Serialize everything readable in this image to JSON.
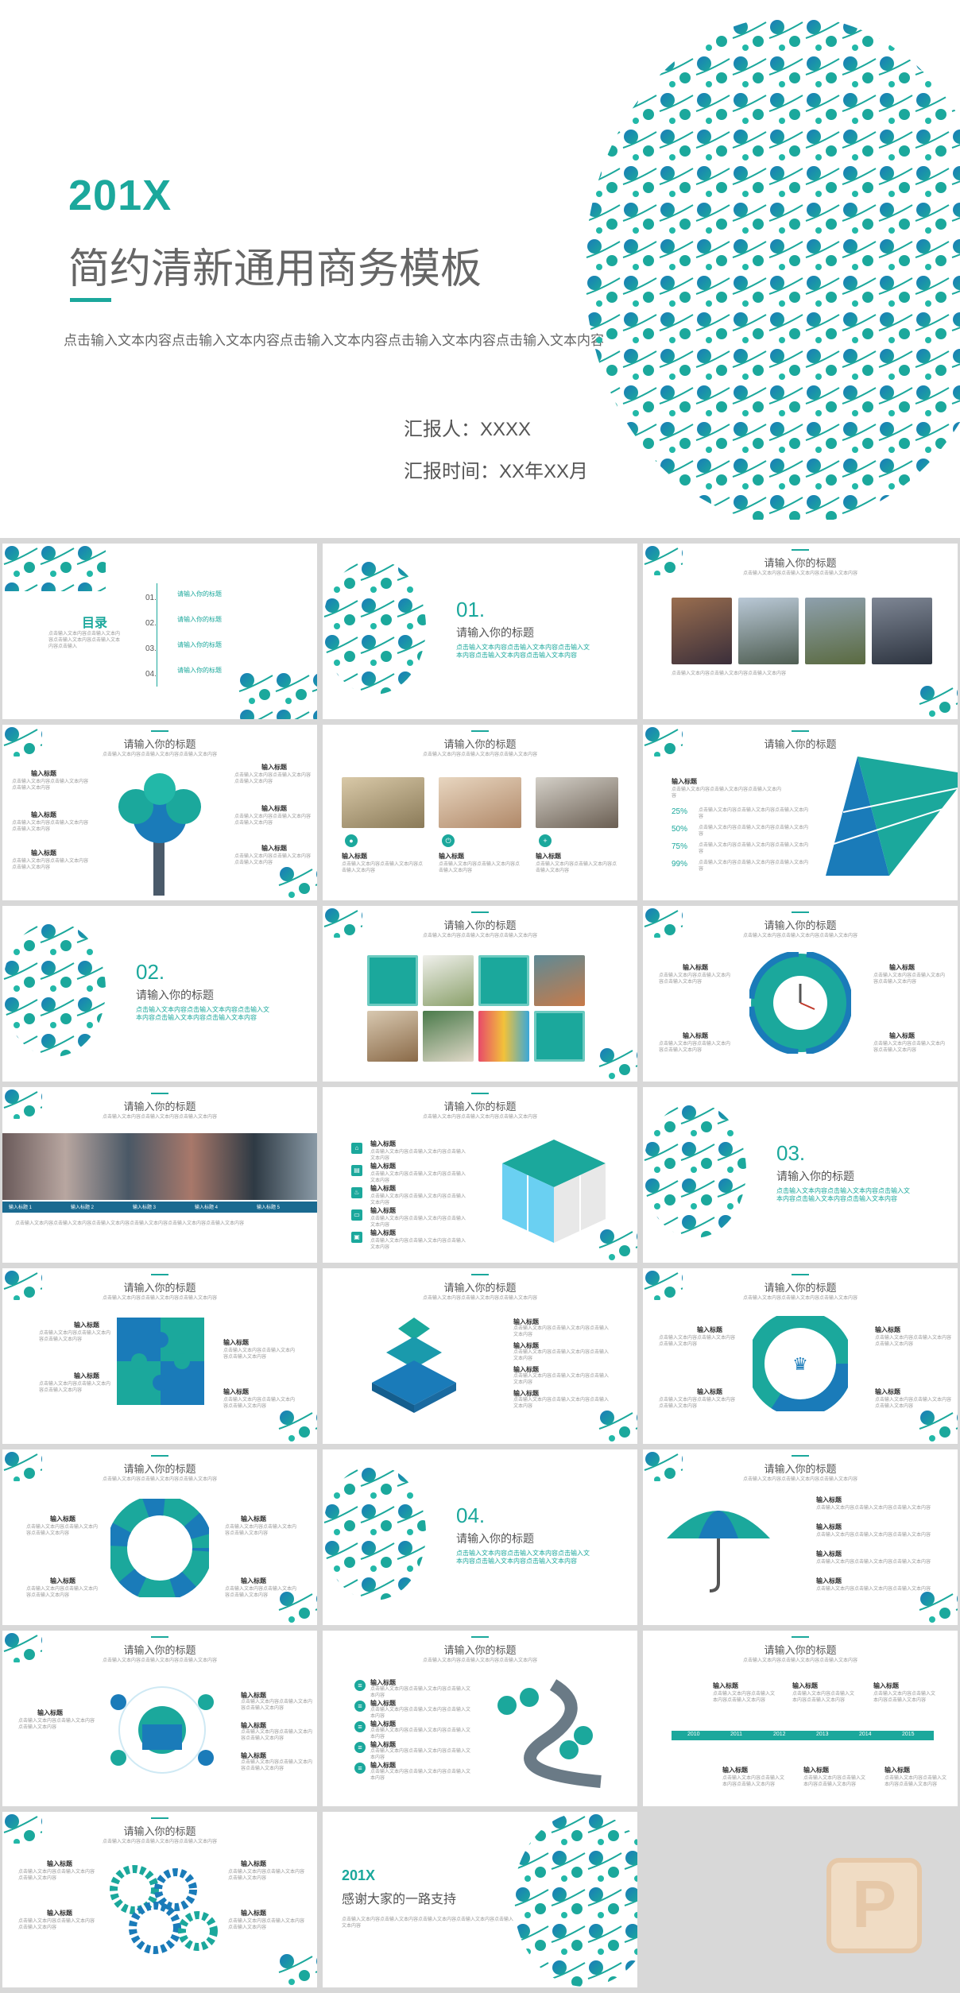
{
  "hero": {
    "year": "201X",
    "title": "简约清新通用商务模板",
    "subtitle": "点击输入文本内容点击输入文本内容点击输入文本内容点击输入文本内容点击输入文本内容",
    "reporter": "汇报人：XXXX",
    "report_time": "汇报时间：XX年XX月"
  },
  "toc": {
    "heading": "目录",
    "desc": "点击输入文本内容点击输入文本内容点击输入文本内容点击输入文本内容点击输入",
    "items": [
      {
        "num": "01.",
        "label": "请输入你的标题"
      },
      {
        "num": "02.",
        "label": "请输入你的标题"
      },
      {
        "num": "03.",
        "label": "请输入你的标题"
      },
      {
        "num": "04.",
        "label": "请输入你的标题"
      }
    ]
  },
  "sections": [
    {
      "num": "01.",
      "title": "请输入你的标题",
      "text": "点击输入文本内容点击输入文本内容点击输入文本内容点击输入文本内容点击输入文本内容"
    },
    {
      "num": "02.",
      "title": "请输入你的标题",
      "text": "点击输入文本内容点击输入文本内容点击输入文本内容点击输入文本内容点击输入文本内容"
    },
    {
      "num": "03.",
      "title": "请输入你的标题",
      "text": "点击输入文本内容点击输入文本内容点击输入文本内容点击输入文本内容点击输入文本内容"
    },
    {
      "num": "04.",
      "title": "请输入你的标题",
      "text": "点击输入文本内容点击输入文本内容点击输入文本内容点击输入文本内容点击输入文本内容"
    }
  ],
  "common": {
    "slide_title": "请输入你的标题",
    "slide_sub": "点击输入文本内容点击输入文本内容点击输入文本内容",
    "item_label": "输入标题",
    "item_text": "点击输入文本内容点击输入文本内容点击输入文本内容"
  },
  "percent_slide": {
    "values": [
      "25%",
      "50%",
      "75%",
      "99%"
    ]
  },
  "photo_caption_slide": {
    "items": [
      "输入标题 1",
      "输入标题 2",
      "输入标题 3",
      "输入标题 4",
      "输入标题 5"
    ],
    "text": "点击输入文本内容点击输入文本内容点击输入文本内容点击输入文本内容点击输入文本内容点击输入文本内容"
  },
  "timeline": {
    "years": [
      "2010",
      "2011",
      "2012",
      "2013",
      "2014",
      "2015"
    ]
  },
  "ending": {
    "year": "201X",
    "text": "感谢大家的一路支持",
    "sub": "点击输入文本内容点击输入文本内容点击输入文本内容点击输入文本内容点击输入文本内容"
  },
  "colors": {
    "accent": "#1ba89c",
    "accent2": "#1a7bb9",
    "background": "#d8d8d8"
  }
}
